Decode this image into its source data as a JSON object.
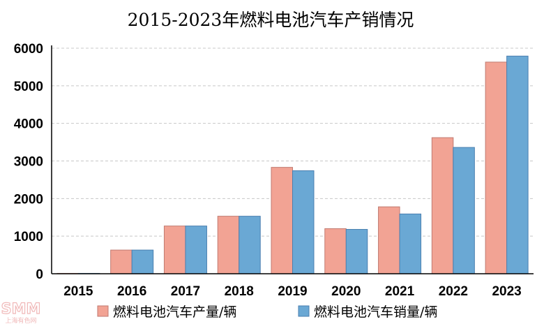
{
  "chart_data": {
    "type": "bar",
    "title": "2015-2023年燃料电池汽车产销情况",
    "categories": [
      "2015",
      "2016",
      "2017",
      "2018",
      "2019",
      "2020",
      "2021",
      "2022",
      "2023"
    ],
    "series": [
      {
        "name": "燃料电池汽车产量/辆",
        "color": "#f2a394",
        "values": [
          10,
          630,
          1270,
          1530,
          2830,
          1200,
          1780,
          3620,
          5630
        ]
      },
      {
        "name": "燃料电池汽车销量/辆",
        "color": "#6aa8d4",
        "values": [
          10,
          630,
          1270,
          1530,
          2740,
          1180,
          1590,
          3360,
          5790
        ]
      }
    ],
    "ylim": [
      0,
      6000
    ],
    "yticks": [
      0,
      1000,
      2000,
      3000,
      4000,
      5000,
      6000
    ],
    "grid": true,
    "legend_position": "bottom"
  },
  "watermark": {
    "brand": "SMM",
    "caption": "上海有色网"
  }
}
